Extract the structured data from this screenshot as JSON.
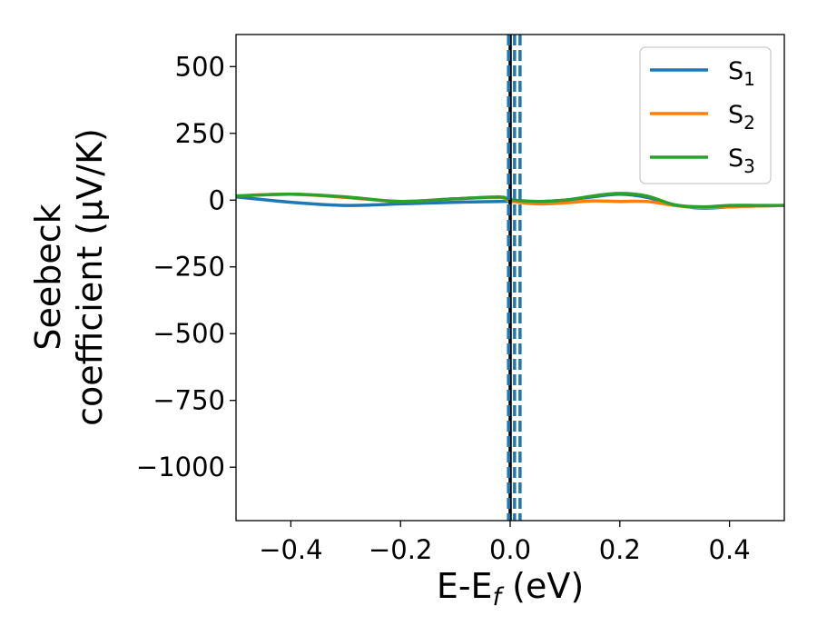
{
  "chart_data": {
    "type": "line",
    "xlabel": "E-E",
    "xlabel_sub": "f",
    "xlabel_unit": " (eV)",
    "ylabel_line1": "Seebeck",
    "ylabel_line2": "coefficient  (μV/K)",
    "xlim": [
      -0.5,
      0.5
    ],
    "ylim": [
      -1200,
      620
    ],
    "xticks": [
      -0.4,
      -0.2,
      0.0,
      0.2,
      0.4
    ],
    "xtick_labels": [
      "−0.4",
      "−0.2",
      "0.0",
      "0.2",
      "0.4"
    ],
    "yticks": [
      500,
      250,
      0,
      -250,
      -500,
      -750,
      -1000
    ],
    "ytick_labels": [
      "500",
      "250",
      "0",
      "−250",
      "−500",
      "−750",
      "−1000"
    ],
    "grid": false,
    "legend_position": "top-right",
    "series": [
      {
        "name": "S",
        "name_sub": "1",
        "color": "#1f77b4",
        "x": [
          -0.5,
          -0.4,
          -0.3,
          -0.2,
          -0.1,
          -0.02,
          0.0,
          0.05,
          0.1,
          0.15,
          0.2,
          0.25,
          0.3,
          0.35,
          0.4,
          0.45,
          0.5
        ],
        "y": [
          12,
          -8,
          -20,
          -14,
          -8,
          -5,
          -5,
          -6,
          0,
          12,
          22,
          10,
          -18,
          -30,
          -25,
          -22,
          -20
        ]
      },
      {
        "name": "S",
        "name_sub": "2",
        "color": "#ff7f0e",
        "x": [
          -0.5,
          -0.4,
          -0.3,
          -0.2,
          -0.1,
          -0.02,
          0.0,
          0.05,
          0.1,
          0.15,
          0.2,
          0.25,
          0.3,
          0.35,
          0.4,
          0.45,
          0.5
        ],
        "y": [
          16,
          22,
          10,
          -5,
          5,
          10,
          -3,
          -14,
          -10,
          -3,
          -5,
          -5,
          -20,
          -28,
          -25,
          -22,
          -20
        ]
      },
      {
        "name": "S",
        "name_sub": "3",
        "color": "#2ca02c",
        "x": [
          -0.5,
          -0.4,
          -0.3,
          -0.2,
          -0.1,
          -0.02,
          0.0,
          0.05,
          0.1,
          0.15,
          0.2,
          0.25,
          0.3,
          0.35,
          0.4,
          0.45,
          0.5
        ],
        "y": [
          15,
          22,
          12,
          -5,
          5,
          12,
          2,
          -5,
          0,
          15,
          25,
          15,
          -18,
          -25,
          -20,
          -20,
          -20
        ]
      }
    ],
    "vlines": [
      {
        "x": 0.0,
        "color": "#000000",
        "style": "solid"
      },
      {
        "x": -0.003,
        "color": "#1f77b4",
        "style": "dashed"
      },
      {
        "x": 0.008,
        "color": "#1f77b4",
        "style": "dashed"
      },
      {
        "x": 0.018,
        "color": "#1f77b4",
        "style": "dashed"
      }
    ]
  }
}
